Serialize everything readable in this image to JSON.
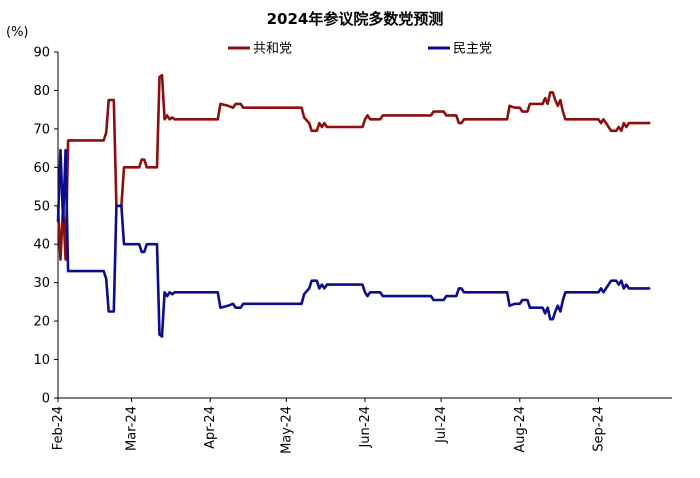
{
  "chart_data": {
    "type": "line",
    "title": "2024年参议院多数党预测",
    "ylabel": "(%)",
    "xlabel": "",
    "ylim": [
      0,
      90
    ],
    "yticks": [
      0,
      10,
      20,
      30,
      40,
      50,
      60,
      70,
      80,
      90
    ],
    "xlim": [
      "2024-02-01",
      "2024-09-30"
    ],
    "xticks": [
      {
        "date": "2024-02-01",
        "label": "Feb-24"
      },
      {
        "date": "2024-03-01",
        "label": "Mar-24"
      },
      {
        "date": "2024-04-01",
        "label": "Apr-24"
      },
      {
        "date": "2024-05-01",
        "label": "May-24"
      },
      {
        "date": "2024-06-01",
        "label": "Jun-24"
      },
      {
        "date": "2024-07-01",
        "label": "Jul-24"
      },
      {
        "date": "2024-08-01",
        "label": "Aug-24"
      },
      {
        "date": "2024-09-01",
        "label": "Sep-24"
      }
    ],
    "grid": false,
    "legend_position": "top",
    "series": [
      {
        "name": "共和党",
        "color": "#8B0F0F",
        "points": [
          [
            "2024-02-01",
            50
          ],
          [
            "2024-02-02",
            36
          ],
          [
            "2024-02-03",
            50
          ],
          [
            "2024-02-04",
            36
          ],
          [
            "2024-02-05",
            67
          ],
          [
            "2024-02-19",
            67
          ],
          [
            "2024-02-20",
            69
          ],
          [
            "2024-02-21",
            77.5
          ],
          [
            "2024-02-23",
            77.5
          ],
          [
            "2024-02-24",
            50
          ],
          [
            "2024-02-26",
            50
          ],
          [
            "2024-02-27",
            60
          ],
          [
            "2024-03-04",
            60
          ],
          [
            "2024-03-05",
            62
          ],
          [
            "2024-03-06",
            62
          ],
          [
            "2024-03-07",
            60
          ],
          [
            "2024-03-11",
            60
          ],
          [
            "2024-03-12",
            83.5
          ],
          [
            "2024-03-13",
            84
          ],
          [
            "2024-03-14",
            72.5
          ],
          [
            "2024-03-15",
            73.5
          ],
          [
            "2024-03-16",
            72.5
          ],
          [
            "2024-03-17",
            73
          ],
          [
            "2024-03-18",
            72.5
          ],
          [
            "2024-04-04",
            72.5
          ],
          [
            "2024-04-05",
            76.5
          ],
          [
            "2024-04-08",
            76
          ],
          [
            "2024-04-10",
            75.5
          ],
          [
            "2024-04-11",
            76.5
          ],
          [
            "2024-04-13",
            76.5
          ],
          [
            "2024-04-14",
            75.5
          ],
          [
            "2024-05-07",
            75.5
          ],
          [
            "2024-05-08",
            73
          ],
          [
            "2024-05-10",
            71.5
          ],
          [
            "2024-05-11",
            69.5
          ],
          [
            "2024-05-13",
            69.5
          ],
          [
            "2024-05-14",
            71.5
          ],
          [
            "2024-05-15",
            70.5
          ],
          [
            "2024-05-16",
            71.5
          ],
          [
            "2024-05-17",
            70.5
          ],
          [
            "2024-05-31",
            70.5
          ],
          [
            "2024-06-01",
            72.5
          ],
          [
            "2024-06-02",
            73.5
          ],
          [
            "2024-06-03",
            72.5
          ],
          [
            "2024-06-07",
            72.5
          ],
          [
            "2024-06-08",
            73.5
          ],
          [
            "2024-06-27",
            73.5
          ],
          [
            "2024-06-28",
            74.5
          ],
          [
            "2024-07-02",
            74.5
          ],
          [
            "2024-07-03",
            73.5
          ],
          [
            "2024-07-07",
            73.5
          ],
          [
            "2024-07-08",
            71.5
          ],
          [
            "2024-07-09",
            71.5
          ],
          [
            "2024-07-10",
            72.5
          ],
          [
            "2024-07-27",
            72.5
          ],
          [
            "2024-07-28",
            76
          ],
          [
            "2024-07-30",
            75.5
          ],
          [
            "2024-08-01",
            75.5
          ],
          [
            "2024-08-02",
            74.5
          ],
          [
            "2024-08-04",
            74.5
          ],
          [
            "2024-08-05",
            76.5
          ],
          [
            "2024-08-10",
            76.5
          ],
          [
            "2024-08-11",
            78
          ],
          [
            "2024-08-12",
            76.5
          ],
          [
            "2024-08-13",
            79.5
          ],
          [
            "2024-08-14",
            79.5
          ],
          [
            "2024-08-15",
            77.5
          ],
          [
            "2024-08-16",
            76
          ],
          [
            "2024-08-17",
            77.5
          ],
          [
            "2024-08-18",
            74.5
          ],
          [
            "2024-08-19",
            72.5
          ],
          [
            "2024-09-01",
            72.5
          ],
          [
            "2024-09-02",
            71.5
          ],
          [
            "2024-09-03",
            72.5
          ],
          [
            "2024-09-04",
            71.5
          ],
          [
            "2024-09-05",
            70.5
          ],
          [
            "2024-09-06",
            69.5
          ],
          [
            "2024-09-08",
            69.5
          ],
          [
            "2024-09-09",
            70.5
          ],
          [
            "2024-09-10",
            69.5
          ],
          [
            "2024-09-11",
            71.5
          ],
          [
            "2024-09-12",
            70.5
          ],
          [
            "2024-09-13",
            71.5
          ],
          [
            "2024-09-21",
            71.5
          ]
        ]
      },
      {
        "name": "民主党",
        "color": "#0D0D8A",
        "points": [
          [
            "2024-02-01",
            46
          ],
          [
            "2024-02-02",
            64.5
          ],
          [
            "2024-02-03",
            46
          ],
          [
            "2024-02-04",
            64.5
          ],
          [
            "2024-02-05",
            33
          ],
          [
            "2024-02-19",
            33
          ],
          [
            "2024-02-20",
            31
          ],
          [
            "2024-02-21",
            22.5
          ],
          [
            "2024-02-23",
            22.5
          ],
          [
            "2024-02-24",
            50
          ],
          [
            "2024-02-26",
            50
          ],
          [
            "2024-02-27",
            40
          ],
          [
            "2024-03-04",
            40
          ],
          [
            "2024-03-05",
            38
          ],
          [
            "2024-03-06",
            38
          ],
          [
            "2024-03-07",
            40
          ],
          [
            "2024-03-11",
            40
          ],
          [
            "2024-03-12",
            16.5
          ],
          [
            "2024-03-13",
            16
          ],
          [
            "2024-03-14",
            27.5
          ],
          [
            "2024-03-15",
            26.5
          ],
          [
            "2024-03-16",
            27.5
          ],
          [
            "2024-03-17",
            27
          ],
          [
            "2024-03-18",
            27.5
          ],
          [
            "2024-04-04",
            27.5
          ],
          [
            "2024-04-05",
            23.5
          ],
          [
            "2024-04-08",
            24
          ],
          [
            "2024-04-10",
            24.5
          ],
          [
            "2024-04-11",
            23.5
          ],
          [
            "2024-04-13",
            23.5
          ],
          [
            "2024-04-14",
            24.5
          ],
          [
            "2024-05-07",
            24.5
          ],
          [
            "2024-05-08",
            27
          ],
          [
            "2024-05-10",
            28.5
          ],
          [
            "2024-05-11",
            30.5
          ],
          [
            "2024-05-13",
            30.5
          ],
          [
            "2024-05-14",
            28.5
          ],
          [
            "2024-05-15",
            29.5
          ],
          [
            "2024-05-16",
            28.5
          ],
          [
            "2024-05-17",
            29.5
          ],
          [
            "2024-05-31",
            29.5
          ],
          [
            "2024-06-01",
            27.5
          ],
          [
            "2024-06-02",
            26.5
          ],
          [
            "2024-06-03",
            27.5
          ],
          [
            "2024-06-07",
            27.5
          ],
          [
            "2024-06-08",
            26.5
          ],
          [
            "2024-06-27",
            26.5
          ],
          [
            "2024-06-28",
            25.5
          ],
          [
            "2024-07-02",
            25.5
          ],
          [
            "2024-07-03",
            26.5
          ],
          [
            "2024-07-07",
            26.5
          ],
          [
            "2024-07-08",
            28.5
          ],
          [
            "2024-07-09",
            28.5
          ],
          [
            "2024-07-10",
            27.5
          ],
          [
            "2024-07-27",
            27.5
          ],
          [
            "2024-07-28",
            24
          ],
          [
            "2024-07-30",
            24.5
          ],
          [
            "2024-08-01",
            24.5
          ],
          [
            "2024-08-02",
            25.5
          ],
          [
            "2024-08-04",
            25.5
          ],
          [
            "2024-08-05",
            23.5
          ],
          [
            "2024-08-10",
            23.5
          ],
          [
            "2024-08-11",
            22
          ],
          [
            "2024-08-12",
            23.5
          ],
          [
            "2024-08-13",
            20.5
          ],
          [
            "2024-08-14",
            20.5
          ],
          [
            "2024-08-15",
            22.5
          ],
          [
            "2024-08-16",
            24
          ],
          [
            "2024-08-17",
            22.5
          ],
          [
            "2024-08-18",
            25.5
          ],
          [
            "2024-08-19",
            27.5
          ],
          [
            "2024-09-01",
            27.5
          ],
          [
            "2024-09-02",
            28.5
          ],
          [
            "2024-09-03",
            27.5
          ],
          [
            "2024-09-04",
            28.5
          ],
          [
            "2024-09-05",
            29.5
          ],
          [
            "2024-09-06",
            30.5
          ],
          [
            "2024-09-08",
            30.5
          ],
          [
            "2024-09-09",
            29.5
          ],
          [
            "2024-09-10",
            30.5
          ],
          [
            "2024-09-11",
            28.5
          ],
          [
            "2024-09-12",
            29.5
          ],
          [
            "2024-09-13",
            28.5
          ],
          [
            "2024-09-21",
            28.5
          ]
        ]
      }
    ]
  }
}
